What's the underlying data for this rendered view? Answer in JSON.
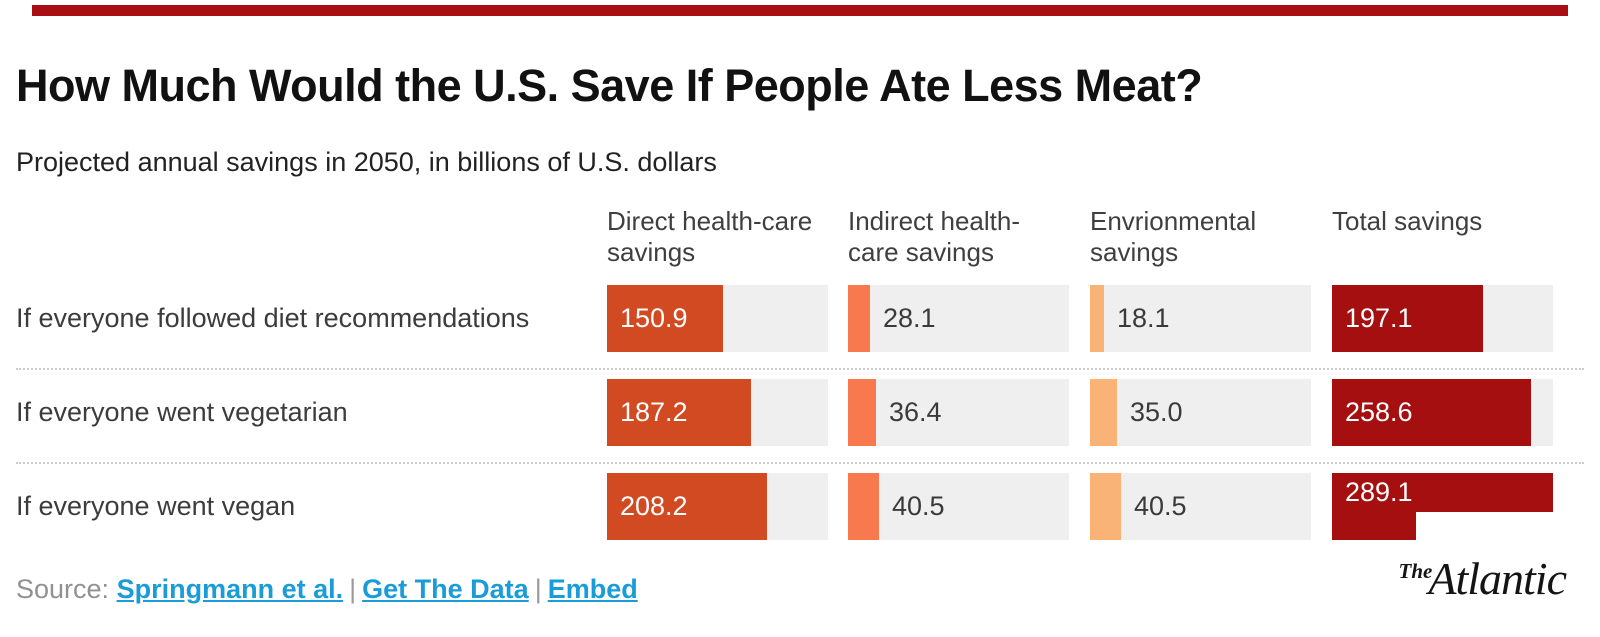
{
  "accent_color": "#a90f12",
  "header": {
    "title": "How Much Would the U.S. Save If People Ate Less Meat?",
    "subtitle": "Projected annual savings in 2050, in billions of U.S. dollars"
  },
  "chart": {
    "columns": [
      {
        "label": "Direct health-care savings",
        "color": "#d14a21"
      },
      {
        "label": "Indirect health-care savings",
        "color": "#f8794e"
      },
      {
        "label": "Envrionmental savings",
        "color": "#fab377"
      },
      {
        "label": "Total savings",
        "color": "#a60f0f"
      }
    ],
    "track_color": "#efefef",
    "rows": [
      {
        "label": "If everyone followed diet recommendations",
        "cells": [
          {
            "display": "150.9",
            "value": 150.9
          },
          {
            "display": "28.1",
            "value": 28.1
          },
          {
            "display": "18.1",
            "value": 18.1
          },
          {
            "display": "197.1",
            "value": 197.1
          }
        ]
      },
      {
        "label": "If everyone went vegetarian",
        "cells": [
          {
            "display": "187.2",
            "value": 187.2
          },
          {
            "display": "36.4",
            "value": 36.4
          },
          {
            "display": "35.0",
            "value": 35.0
          },
          {
            "display": "258.6",
            "value": 258.6
          }
        ]
      },
      {
        "label": "If everyone went vegan",
        "cells": [
          {
            "display": "208.2",
            "value": 208.2
          },
          {
            "display": "40.5",
            "value": 40.5
          },
          {
            "display": "40.5",
            "value": 40.5
          },
          {
            "display": "289.1",
            "value": 289.1,
            "overflow": true
          }
        ]
      }
    ]
  },
  "chart_data": {
    "type": "bar",
    "orientation": "horizontal",
    "title": "How Much Would the U.S. Save If People Ate Less Meat?",
    "subtitle": "Projected annual savings in 2050, in billions of U.S. dollars",
    "unit": "billions of U.S. dollars",
    "categories": [
      "If everyone followed diet recommendations",
      "If everyone went vegetarian",
      "If everyone went vegan"
    ],
    "series": [
      {
        "name": "Direct health-care savings",
        "values": [
          150.9,
          187.2,
          208.2
        ],
        "color": "#d14a21"
      },
      {
        "name": "Indirect health-care savings",
        "values": [
          28.1,
          36.4,
          40.5
        ],
        "color": "#f8794e"
      },
      {
        "name": "Envrionmental savings",
        "values": [
          18.1,
          35.0,
          40.5
        ],
        "color": "#fab377"
      },
      {
        "name": "Total savings",
        "values": [
          197.1,
          258.6,
          289.1
        ],
        "color": "#a60f0f"
      }
    ],
    "xlim": [
      0,
      288
    ],
    "grid": false,
    "legend_position": "column-headers",
    "value_labels": "on-bars"
  },
  "source": {
    "prefix": "Source:",
    "links": [
      {
        "label": "Springmann et al."
      },
      {
        "label": "Get The Data"
      },
      {
        "label": "Embed"
      }
    ],
    "separator": "|"
  },
  "logo": {
    "the": "The",
    "atlantic": "Atlantic"
  }
}
